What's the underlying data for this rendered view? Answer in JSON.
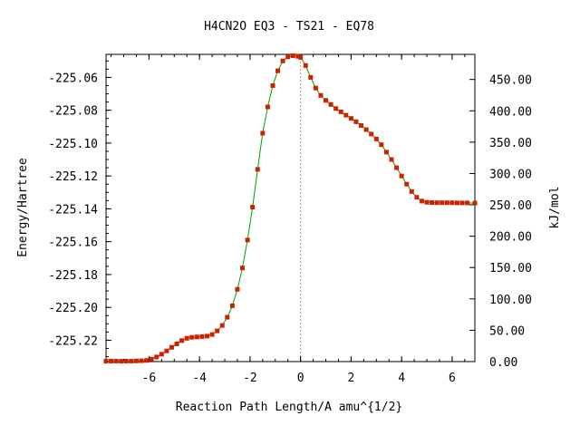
{
  "chart_data": {
    "type": "line",
    "title": "H4CN2O   EQ3 - TS21 - EQ78",
    "xlabel": "Reaction Path Length/A amu^{1/2}",
    "ylabel": "Energy/Hartree",
    "y2label": "kJ/mol",
    "xlim": [
      -7.7,
      6.9
    ],
    "ylim": [
      -225.233,
      -225.046
    ],
    "y2lim": [
      0,
      490
    ],
    "x_ticks": [
      -6,
      -4,
      -2,
      0,
      2,
      4,
      6
    ],
    "x_tick_labels": [
      "-6",
      "-4",
      "-2",
      "0",
      "2",
      "4",
      "6"
    ],
    "y_ticks": [
      -225.22,
      -225.2,
      -225.18,
      -225.16,
      -225.14,
      -225.12,
      -225.1,
      -225.08,
      -225.06
    ],
    "y_tick_labels": [
      "-225.22",
      "-225.20",
      "-225.18",
      "-225.16",
      "-225.14",
      "-225.12",
      "-225.10",
      "-225.08",
      "-225.06"
    ],
    "y2_ticks": [
      0,
      50,
      100,
      150,
      200,
      250,
      300,
      350,
      400,
      450
    ],
    "y2_tick_labels": [
      "0.00",
      "50.00",
      "100.00",
      "150.00",
      "200.00",
      "250.00",
      "300.00",
      "350.00",
      "400.00",
      "450.00"
    ],
    "ts_marker_x": 0,
    "line_color": "#00a000",
    "marker_color": "#cc2200",
    "ts_line_color": "#999999",
    "series": [
      {
        "x": [
          -7.7,
          -7.5,
          -7.3,
          -7.1,
          -6.9,
          -6.7,
          -6.5,
          -6.3,
          -6.1,
          -5.9,
          -5.7,
          -5.5,
          -5.3,
          -5.1,
          -4.9,
          -4.7,
          -4.5,
          -4.3,
          -4.1,
          -3.9,
          -3.7,
          -3.5,
          -3.3,
          -3.1,
          -2.9,
          -2.7,
          -2.5,
          -2.3,
          -2.1,
          -1.9,
          -1.7,
          -1.5,
          -1.3,
          -1.1,
          -0.9,
          -0.7,
          -0.5,
          -0.3,
          -0.1,
          0.0,
          0.2,
          0.4,
          0.6,
          0.8,
          1.0,
          1.2,
          1.4,
          1.6,
          1.8,
          2.0,
          2.2,
          2.4,
          2.6,
          2.8,
          3.0,
          3.2,
          3.4,
          3.6,
          3.8,
          4.0,
          4.2,
          4.4,
          4.6,
          4.8,
          5.0,
          5.2,
          5.4,
          5.6,
          5.8,
          6.0,
          6.2,
          6.4,
          6.6,
          6.9
        ],
        "y": [
          -225.2328,
          -225.2327,
          -225.2327,
          -225.2328,
          -225.2327,
          -225.2327,
          -225.2326,
          -225.2325,
          -225.2323,
          -225.2315,
          -225.2302,
          -225.2285,
          -225.2265,
          -225.2243,
          -225.2222,
          -225.2202,
          -225.2188,
          -225.2182,
          -225.218,
          -225.2178,
          -225.2175,
          -225.2165,
          -225.2143,
          -225.211,
          -225.206,
          -225.199,
          -225.189,
          -225.176,
          -225.159,
          -225.139,
          -225.116,
          -225.094,
          -225.078,
          -225.065,
          -225.056,
          -225.05,
          -225.0475,
          -225.0468,
          -225.0472,
          -225.0478,
          -225.0528,
          -225.06,
          -225.0665,
          -225.071,
          -225.074,
          -225.0765,
          -225.079,
          -225.081,
          -225.083,
          -225.085,
          -225.087,
          -225.0893,
          -225.0918,
          -225.0945,
          -225.0975,
          -225.101,
          -225.1055,
          -225.11,
          -225.115,
          -225.12,
          -225.125,
          -225.1295,
          -225.133,
          -225.1353,
          -225.136,
          -225.1362,
          -225.1363,
          -225.1363,
          -225.1363,
          -225.1363,
          -225.1364,
          -225.1364,
          -225.1364,
          -225.1365
        ]
      }
    ]
  }
}
